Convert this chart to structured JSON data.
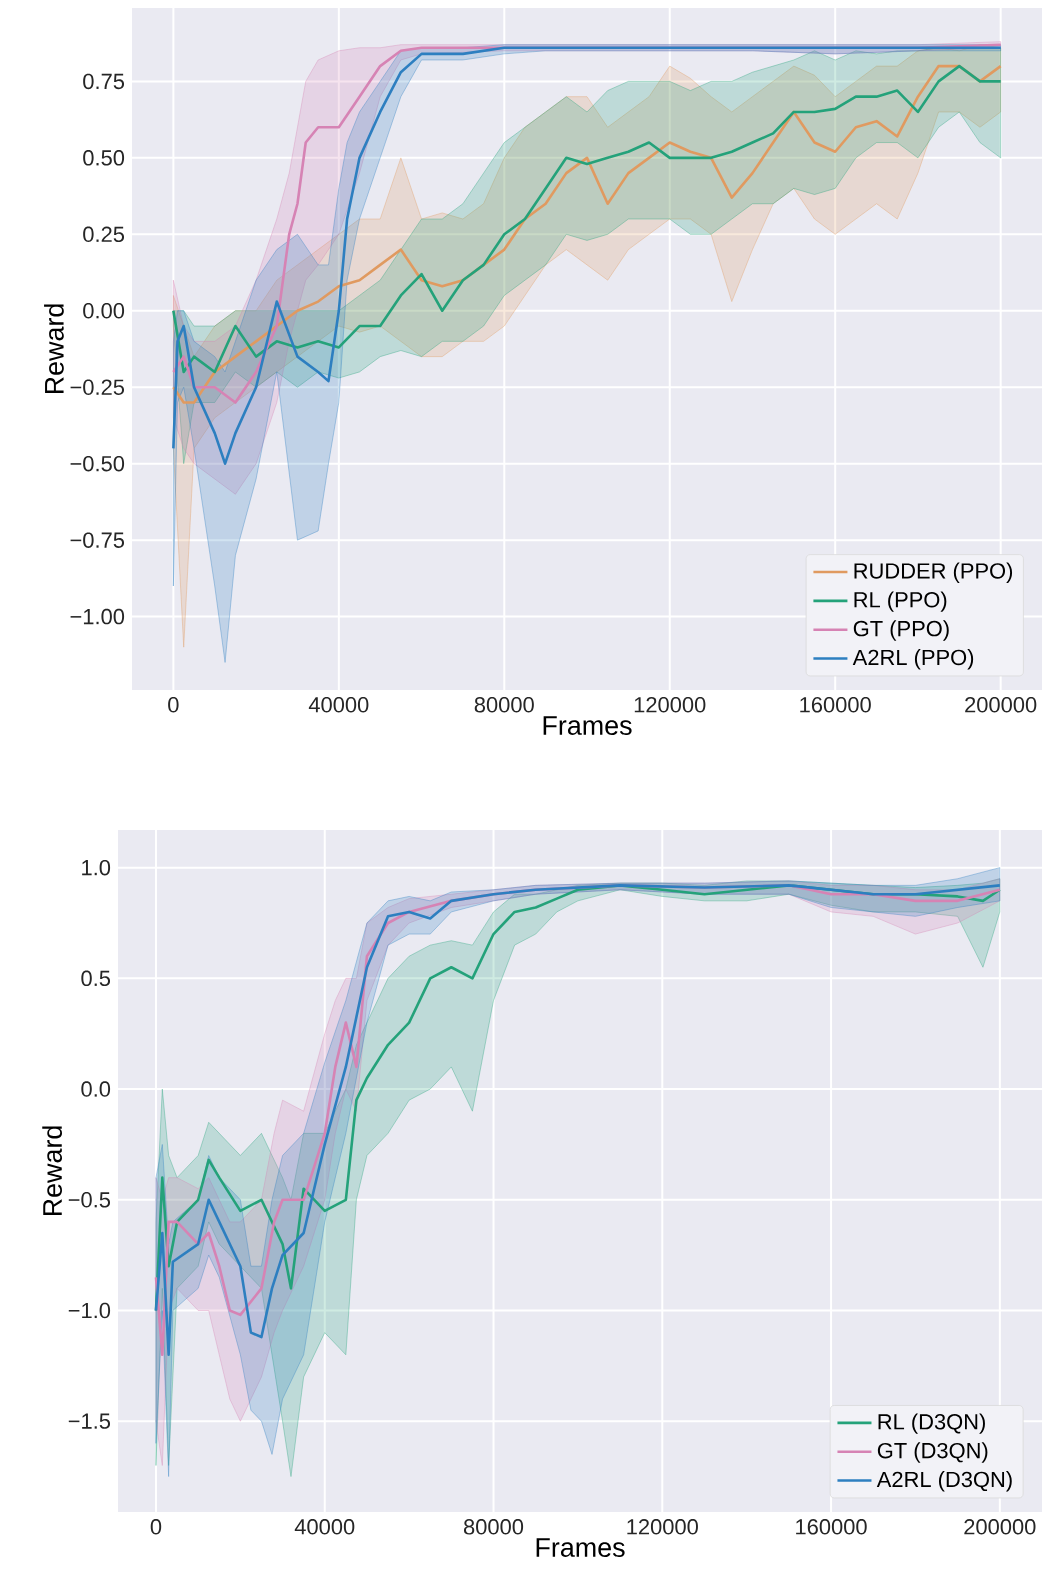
{
  "chart_data": [
    {
      "type": "line",
      "xlabel": "Frames",
      "ylabel": "Reward",
      "xlim": [
        -10000,
        210000
      ],
      "ylim": [
        -1.24,
        0.99
      ],
      "xticks": [
        0,
        40000,
        80000,
        120000,
        160000,
        200000
      ],
      "yticks": [
        {
          "value": -1.0,
          "label": "−1.00"
        },
        {
          "value": -0.75,
          "label": "−0.75"
        },
        {
          "value": -0.5,
          "label": "−0.50"
        },
        {
          "value": -0.25,
          "label": "−0.25"
        },
        {
          "value": 0.0,
          "label": "0.00"
        },
        {
          "value": 0.25,
          "label": "0.25"
        },
        {
          "value": 0.5,
          "label": "0.50"
        },
        {
          "value": 0.75,
          "label": "0.75"
        }
      ],
      "grid": true,
      "legend": "bottom right",
      "line_style": "solid",
      "series": [
        {
          "name": "RUDDER (PPO)",
          "color": "#e09a60",
          "x": [
            0,
            2500,
            5000,
            10000,
            15000,
            20000,
            25000,
            30000,
            35000,
            40000,
            45000,
            50000,
            55000,
            60000,
            65000,
            70000,
            75000,
            80000,
            85000,
            90000,
            95000,
            100000,
            105000,
            110000,
            115000,
            120000,
            125000,
            130000,
            135000,
            140000,
            145000,
            150000,
            155000,
            160000,
            165000,
            170000,
            175000,
            180000,
            185000,
            190000,
            195000,
            200000
          ],
          "values": [
            -0.25,
            -0.3,
            -0.3,
            -0.2,
            -0.15,
            -0.1,
            -0.05,
            0.0,
            0.03,
            0.08,
            0.1,
            0.15,
            0.2,
            0.1,
            0.08,
            0.1,
            0.15,
            0.2,
            0.3,
            0.35,
            0.45,
            0.5,
            0.35,
            0.45,
            0.5,
            0.55,
            0.52,
            0.5,
            0.37,
            0.45,
            0.55,
            0.65,
            0.55,
            0.52,
            0.6,
            0.62,
            0.57,
            0.7,
            0.8,
            0.8,
            0.75,
            0.8
          ],
          "lower": [
            -0.45,
            -1.1,
            -0.45,
            -0.35,
            -0.3,
            -0.25,
            -0.2,
            -0.15,
            -0.1,
            -0.05,
            -0.07,
            -0.05,
            -0.1,
            -0.15,
            -0.15,
            -0.1,
            -0.1,
            -0.05,
            0.05,
            0.15,
            0.2,
            0.15,
            0.1,
            0.2,
            0.25,
            0.3,
            0.3,
            0.25,
            0.03,
            0.2,
            0.35,
            0.4,
            0.3,
            0.25,
            0.3,
            0.35,
            0.3,
            0.45,
            0.65,
            0.65,
            0.6,
            0.65
          ],
          "upper": [
            0.05,
            -0.05,
            -0.15,
            -0.05,
            0.0,
            0.0,
            0.1,
            0.15,
            0.2,
            0.25,
            0.3,
            0.3,
            0.5,
            0.3,
            0.32,
            0.3,
            0.35,
            0.5,
            0.6,
            0.65,
            0.7,
            0.7,
            0.6,
            0.65,
            0.7,
            0.8,
            0.76,
            0.7,
            0.65,
            0.7,
            0.75,
            0.8,
            0.77,
            0.7,
            0.75,
            0.8,
            0.8,
            0.85,
            0.86,
            0.85,
            0.87,
            0.86
          ]
        },
        {
          "name": "RL (PPO)",
          "color": "#24a27a",
          "x": [
            0,
            2500,
            5000,
            10000,
            15000,
            20000,
            25000,
            30000,
            35000,
            40000,
            45000,
            50000,
            55000,
            60000,
            65000,
            70000,
            75000,
            80000,
            85000,
            90000,
            95000,
            100000,
            105000,
            110000,
            115000,
            120000,
            125000,
            130000,
            135000,
            140000,
            145000,
            150000,
            155000,
            160000,
            165000,
            170000,
            175000,
            180000,
            185000,
            190000,
            195000,
            200000
          ],
          "values": [
            0.0,
            -0.2,
            -0.15,
            -0.2,
            -0.05,
            -0.15,
            -0.1,
            -0.12,
            -0.1,
            -0.12,
            -0.05,
            -0.05,
            0.05,
            0.12,
            0.0,
            0.1,
            0.15,
            0.25,
            0.3,
            0.4,
            0.5,
            0.48,
            0.5,
            0.52,
            0.55,
            0.5,
            0.5,
            0.5,
            0.52,
            0.55,
            0.58,
            0.65,
            0.65,
            0.66,
            0.7,
            0.7,
            0.72,
            0.65,
            0.75,
            0.8,
            0.75,
            0.75
          ],
          "lower": [
            -0.05,
            -0.5,
            -0.3,
            -0.3,
            -0.2,
            -0.25,
            -0.2,
            -0.25,
            -0.2,
            -0.22,
            -0.2,
            -0.15,
            -0.13,
            -0.15,
            -0.1,
            -0.1,
            -0.05,
            0.05,
            0.1,
            0.15,
            0.25,
            0.23,
            0.25,
            0.3,
            0.3,
            0.3,
            0.25,
            0.25,
            0.3,
            0.35,
            0.35,
            0.4,
            0.38,
            0.4,
            0.5,
            0.55,
            0.55,
            0.5,
            0.6,
            0.65,
            0.55,
            0.5
          ],
          "upper": [
            0.0,
            0.0,
            -0.05,
            -0.05,
            0.0,
            0.0,
            0.0,
            0.0,
            0.0,
            0.0,
            0.05,
            0.1,
            0.2,
            0.3,
            0.3,
            0.35,
            0.45,
            0.55,
            0.6,
            0.65,
            0.7,
            0.65,
            0.72,
            0.75,
            0.75,
            0.75,
            0.72,
            0.75,
            0.75,
            0.78,
            0.8,
            0.82,
            0.85,
            0.82,
            0.85,
            0.84,
            0.85,
            0.85,
            0.86,
            0.86,
            0.86,
            0.86
          ]
        },
        {
          "name": "GT (PPO)",
          "color": "#d683b4",
          "x": [
            0,
            2500,
            5000,
            10000,
            15000,
            20000,
            25000,
            28000,
            30000,
            32000,
            35000,
            40000,
            45000,
            50000,
            55000,
            60000,
            80000,
            100000,
            120000,
            140000,
            160000,
            180000,
            200000
          ],
          "values": [
            -0.2,
            -0.15,
            -0.25,
            -0.25,
            -0.3,
            -0.2,
            -0.05,
            0.25,
            0.35,
            0.55,
            0.6,
            0.6,
            0.7,
            0.8,
            0.85,
            0.86,
            0.86,
            0.86,
            0.86,
            0.86,
            0.86,
            0.86,
            0.87
          ],
          "lower": [
            -0.35,
            -0.45,
            -0.5,
            -0.55,
            -0.6,
            -0.5,
            -0.3,
            -0.1,
            0.0,
            0.1,
            0.15,
            0.25,
            0.45,
            0.7,
            0.82,
            0.84,
            0.85,
            0.85,
            0.85,
            0.85,
            0.84,
            0.85,
            0.86
          ],
          "upper": [
            0.1,
            -0.05,
            -0.1,
            -0.1,
            -0.05,
            0.1,
            0.3,
            0.45,
            0.6,
            0.75,
            0.82,
            0.85,
            0.86,
            0.86,
            0.87,
            0.87,
            0.87,
            0.87,
            0.87,
            0.87,
            0.87,
            0.87,
            0.88
          ]
        },
        {
          "name": "A2RL (PPO)",
          "color": "#2d7fc0",
          "x": [
            0,
            1000,
            2500,
            5000,
            10000,
            12500,
            15000,
            20000,
            25000,
            30000,
            35000,
            37500,
            40000,
            42000,
            45000,
            50000,
            55000,
            60000,
            70000,
            80000,
            90000,
            100000,
            120000,
            140000,
            160000,
            180000,
            200000
          ],
          "values": [
            -0.45,
            -0.1,
            -0.05,
            -0.25,
            -0.4,
            -0.5,
            -0.4,
            -0.25,
            0.03,
            -0.15,
            -0.2,
            -0.23,
            0.0,
            0.3,
            0.5,
            0.65,
            0.78,
            0.84,
            0.84,
            0.86,
            0.86,
            0.86,
            0.86,
            0.86,
            0.86,
            0.86,
            0.86
          ],
          "lower": [
            -0.9,
            -0.3,
            -0.25,
            -0.45,
            -0.9,
            -1.15,
            -0.8,
            -0.55,
            -0.2,
            -0.75,
            -0.72,
            -0.5,
            -0.3,
            0.1,
            0.3,
            0.5,
            0.7,
            0.82,
            0.82,
            0.84,
            0.85,
            0.85,
            0.85,
            0.85,
            0.84,
            0.85,
            0.85
          ],
          "upper": [
            -0.1,
            0.0,
            0.0,
            -0.1,
            -0.15,
            -0.2,
            -0.1,
            0.1,
            0.2,
            0.25,
            0.15,
            0.15,
            0.4,
            0.55,
            0.65,
            0.75,
            0.85,
            0.86,
            0.86,
            0.87,
            0.87,
            0.87,
            0.87,
            0.87,
            0.87,
            0.87,
            0.87
          ]
        }
      ]
    },
    {
      "type": "line",
      "xlabel": "Frames",
      "ylabel": "Reward",
      "xlim": [
        -9000,
        210000
      ],
      "ylim": [
        -1.91,
        1.17
      ],
      "xticks": [
        0,
        40000,
        80000,
        120000,
        160000,
        200000
      ],
      "yticks": [
        {
          "value": -1.5,
          "label": "−1.5"
        },
        {
          "value": -1.0,
          "label": "−1.0"
        },
        {
          "value": -0.5,
          "label": "−0.5"
        },
        {
          "value": 0.0,
          "label": "0.0"
        },
        {
          "value": 0.5,
          "label": "0.5"
        },
        {
          "value": 1.0,
          "label": "1.0"
        }
      ],
      "grid": true,
      "legend": "bottom right",
      "line_style": "solid",
      "series": [
        {
          "name": "RL (D3QN)",
          "color": "#24a27a",
          "x": [
            0,
            1500,
            3000,
            5000,
            10000,
            12500,
            15000,
            20000,
            25000,
            30000,
            32000,
            35000,
            40000,
            45000,
            47500,
            50000,
            55000,
            60000,
            65000,
            70000,
            75000,
            80000,
            85000,
            90000,
            95000,
            100000,
            110000,
            120000,
            130000,
            140000,
            150000,
            160000,
            170000,
            180000,
            190000,
            196000,
            200000
          ],
          "values": [
            -1.0,
            -0.4,
            -0.8,
            -0.6,
            -0.5,
            -0.32,
            -0.4,
            -0.55,
            -0.5,
            -0.7,
            -0.9,
            -0.45,
            -0.55,
            -0.5,
            -0.05,
            0.05,
            0.2,
            0.3,
            0.5,
            0.55,
            0.5,
            0.7,
            0.8,
            0.82,
            0.86,
            0.9,
            0.92,
            0.9,
            0.88,
            0.9,
            0.92,
            0.9,
            0.88,
            0.88,
            0.87,
            0.85,
            0.9
          ],
          "lower": [
            -1.7,
            -0.9,
            -1.7,
            -0.9,
            -0.8,
            -0.6,
            -0.7,
            -0.8,
            -0.9,
            -1.5,
            -1.75,
            -1.3,
            -1.1,
            -1.2,
            -0.5,
            -0.3,
            -0.2,
            -0.05,
            0.0,
            0.1,
            -0.1,
            0.4,
            0.65,
            0.7,
            0.8,
            0.85,
            0.9,
            0.87,
            0.85,
            0.85,
            0.88,
            0.83,
            0.8,
            0.8,
            0.78,
            0.55,
            0.8
          ],
          "upper": [
            -0.6,
            0.0,
            -0.3,
            -0.4,
            -0.3,
            -0.15,
            -0.2,
            -0.3,
            -0.2,
            -0.4,
            -0.5,
            -0.2,
            -0.2,
            0.0,
            0.2,
            0.3,
            0.5,
            0.6,
            0.65,
            0.67,
            0.65,
            0.8,
            0.88,
            0.88,
            0.9,
            0.92,
            0.93,
            0.93,
            0.92,
            0.94,
            0.94,
            0.93,
            0.92,
            0.91,
            0.92,
            0.93,
            0.95
          ]
        },
        {
          "name": "GT (D3QN)",
          "color": "#d683b4",
          "x": [
            0,
            1500,
            3000,
            5000,
            10000,
            12500,
            15000,
            17500,
            20000,
            25000,
            28000,
            30000,
            35000,
            40000,
            42500,
            45000,
            47500,
            50000,
            55000,
            60000,
            70000,
            80000,
            90000,
            110000,
            130000,
            150000,
            160000,
            170000,
            180000,
            190000,
            200000
          ],
          "values": [
            -0.85,
            -1.2,
            -0.6,
            -0.6,
            -0.7,
            -0.65,
            -0.8,
            -1.0,
            -1.02,
            -0.9,
            -0.6,
            -0.5,
            -0.5,
            -0.2,
            0.1,
            0.3,
            0.1,
            0.6,
            0.75,
            0.8,
            0.85,
            0.88,
            0.9,
            0.92,
            0.91,
            0.92,
            0.88,
            0.88,
            0.85,
            0.85,
            0.9
          ],
          "lower": [
            -1.5,
            -1.7,
            -1.0,
            -0.9,
            -1.0,
            -1.0,
            -1.2,
            -1.4,
            -1.5,
            -1.3,
            -1.1,
            -1.0,
            -0.8,
            -0.5,
            -0.2,
            0.0,
            -0.1,
            0.4,
            0.65,
            0.75,
            0.82,
            0.85,
            0.88,
            0.9,
            0.88,
            0.88,
            0.8,
            0.78,
            0.7,
            0.75,
            0.85
          ],
          "upper": [
            -0.4,
            -0.5,
            -0.4,
            -0.4,
            -0.45,
            -0.4,
            -0.5,
            -0.6,
            -0.6,
            -0.5,
            -0.2,
            -0.05,
            -0.1,
            0.25,
            0.4,
            0.5,
            0.5,
            0.75,
            0.82,
            0.86,
            0.88,
            0.9,
            0.92,
            0.93,
            0.93,
            0.94,
            0.92,
            0.92,
            0.9,
            0.9,
            0.95
          ]
        },
        {
          "name": "A2RL (D3QN)",
          "color": "#2d7fc0",
          "x": [
            0,
            1500,
            3000,
            4000,
            10000,
            12500,
            15000,
            20000,
            22500,
            25000,
            27500,
            30000,
            35000,
            40000,
            45000,
            50000,
            55000,
            60000,
            65000,
            70000,
            80000,
            90000,
            110000,
            130000,
            150000,
            160000,
            170000,
            180000,
            190000,
            200000
          ],
          "values": [
            -1.0,
            -0.65,
            -1.2,
            -0.78,
            -0.7,
            -0.5,
            -0.6,
            -0.8,
            -1.1,
            -1.12,
            -0.9,
            -0.75,
            -0.65,
            -0.25,
            0.1,
            0.55,
            0.78,
            0.8,
            0.77,
            0.85,
            0.88,
            0.9,
            0.92,
            0.91,
            0.92,
            0.9,
            0.88,
            0.88,
            0.9,
            0.92
          ],
          "lower": [
            -1.6,
            -1.0,
            -1.75,
            -1.0,
            -0.9,
            -0.75,
            -0.85,
            -1.2,
            -1.45,
            -1.5,
            -1.65,
            -1.4,
            -1.2,
            -0.6,
            -0.2,
            0.3,
            0.65,
            0.7,
            0.7,
            0.8,
            0.85,
            0.88,
            0.9,
            0.88,
            0.88,
            0.82,
            0.8,
            0.78,
            0.82,
            0.85
          ],
          "upper": [
            -0.4,
            -0.25,
            -0.7,
            -0.6,
            -0.5,
            -0.3,
            -0.4,
            -0.5,
            -0.8,
            -0.8,
            -0.5,
            -0.3,
            -0.2,
            0.12,
            0.4,
            0.75,
            0.85,
            0.87,
            0.85,
            0.89,
            0.9,
            0.92,
            0.93,
            0.93,
            0.94,
            0.93,
            0.92,
            0.92,
            0.95,
            1.0
          ]
        }
      ]
    }
  ]
}
